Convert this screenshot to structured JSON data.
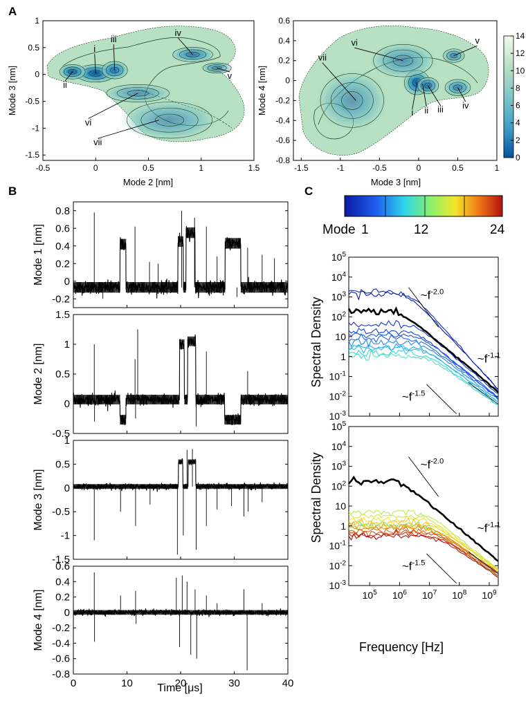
{
  "panel_letters": [
    "A",
    "B",
    "C"
  ],
  "colors": {
    "landscape_low": "#08519c",
    "landscape_mid": "#7fc5c5",
    "landscape_high": "#f2faee",
    "contour": "#1b3a1b",
    "trace": "#000000",
    "mean_spectrum": "#000000"
  },
  "chart_data": [
    {
      "id": "A-left",
      "type": "heatmap",
      "xlabel": "Mode 2 [nm]",
      "ylabel": "Mode 3 [nm]",
      "xlim": [
        -0.5,
        1.5
      ],
      "ylim": [
        -1.6,
        1.0
      ],
      "xticks": [
        -0.5,
        0,
        0.5,
        1,
        1.5
      ],
      "xtick_labels": [
        "-0.5",
        "0",
        "0.5",
        "1",
        "1.5"
      ],
      "yticks": [
        1,
        0.5,
        0,
        -0.5,
        -1,
        -1.5
      ],
      "ytick_labels": [
        "1",
        "0.5",
        "0",
        "-0.5",
        "-1",
        "-1.5"
      ],
      "annotations": [
        {
          "label": "i",
          "x": 0.0,
          "y": 0.02,
          "tx": -0.01,
          "ty": 0.42
        },
        {
          "label": "ii",
          "x": -0.22,
          "y": 0.05,
          "tx": -0.29,
          "ty": -0.25
        },
        {
          "label": "iii",
          "x": 0.18,
          "y": 0.08,
          "tx": 0.17,
          "ty": 0.6
        },
        {
          "label": "iv",
          "x": 0.92,
          "y": 0.37,
          "tx": 0.78,
          "ty": 0.72
        },
        {
          "label": "v",
          "x": 1.15,
          "y": 0.12,
          "tx": 1.27,
          "ty": -0.08
        },
        {
          "label": "vi",
          "x": 0.4,
          "y": -0.35,
          "tx": -0.07,
          "ty": -0.95
        },
        {
          "label": "vii",
          "x": 0.6,
          "y": -0.85,
          "tx": 0.02,
          "ty": -1.32
        }
      ],
      "blobs": [
        {
          "x": 0.0,
          "y": 0.02,
          "sx": 0.14,
          "sy": 0.12,
          "level": 14
        },
        {
          "x": -0.22,
          "y": 0.05,
          "sx": 0.09,
          "sy": 0.1,
          "level": 12
        },
        {
          "x": 0.18,
          "y": 0.08,
          "sx": 0.09,
          "sy": 0.12,
          "level": 9
        },
        {
          "x": 0.92,
          "y": 0.37,
          "sx": 0.14,
          "sy": 0.1,
          "level": 8
        },
        {
          "x": 1.15,
          "y": 0.12,
          "sx": 0.1,
          "sy": 0.07,
          "level": 6
        },
        {
          "x": 0.4,
          "y": -0.35,
          "sx": 0.22,
          "sy": 0.12,
          "level": 4
        },
        {
          "x": 0.7,
          "y": -0.85,
          "sx": 0.3,
          "sy": 0.25,
          "level": 3
        }
      ]
    },
    {
      "id": "A-right",
      "type": "heatmap",
      "xlabel": "Mode 3 [nm]",
      "ylabel": "Mode 4 [nm]",
      "xlim": [
        -1.6,
        1.0
      ],
      "ylim": [
        -0.8,
        0.6
      ],
      "xticks": [
        -1.5,
        -1,
        -0.5,
        0,
        0.5,
        1
      ],
      "xtick_labels": [
        "-1.5",
        "-1",
        "-0.5",
        "0",
        "0.5",
        "1"
      ],
      "yticks": [
        0.6,
        0.4,
        0.2,
        0,
        -0.2,
        -0.4,
        -0.6,
        -0.8
      ],
      "ytick_labels": [
        "0.6",
        "0.4",
        "0.2",
        "0",
        "-0.2",
        "-0.4",
        "-0.6",
        "-0.8"
      ],
      "colorbar": {
        "min": 0,
        "max": 14,
        "ticks": [
          0,
          2,
          4,
          6,
          8,
          10,
          12,
          14
        ]
      },
      "annotations": [
        {
          "label": "i",
          "x": -0.02,
          "y": -0.02,
          "tx": -0.08,
          "ty": -0.35
        },
        {
          "label": "ii",
          "x": 0.05,
          "y": -0.03,
          "tx": 0.1,
          "ty": -0.33
        },
        {
          "label": "iii",
          "x": 0.12,
          "y": -0.05,
          "tx": 0.28,
          "ty": -0.32
        },
        {
          "label": "iv",
          "x": 0.5,
          "y": -0.07,
          "tx": 0.6,
          "ty": -0.28
        },
        {
          "label": "v",
          "x": 0.45,
          "y": 0.25,
          "tx": 0.75,
          "ty": 0.37
        },
        {
          "label": "vi",
          "x": -0.2,
          "y": 0.2,
          "tx": -0.82,
          "ty": 0.35
        },
        {
          "label": "vii",
          "x": -0.8,
          "y": -0.2,
          "tx": -1.23,
          "ty": 0.2
        }
      ],
      "blobs": [
        {
          "x": -0.02,
          "y": -0.02,
          "sx": 0.12,
          "sy": 0.09,
          "level": 14
        },
        {
          "x": 0.12,
          "y": -0.05,
          "sx": 0.1,
          "sy": 0.06,
          "level": 9
        },
        {
          "x": 0.5,
          "y": -0.07,
          "sx": 0.12,
          "sy": 0.06,
          "level": 7
        },
        {
          "x": 0.45,
          "y": 0.25,
          "sx": 0.1,
          "sy": 0.05,
          "level": 6
        },
        {
          "x": -0.2,
          "y": 0.2,
          "sx": 0.28,
          "sy": 0.12,
          "level": 4
        },
        {
          "x": -0.85,
          "y": -0.2,
          "sx": 0.3,
          "sy": 0.2,
          "level": 3
        }
      ]
    },
    {
      "id": "B1",
      "type": "line",
      "ylabel": "Mode 1 [nm]",
      "xlim": [
        0,
        40
      ],
      "ylim": [
        -0.3,
        0.9
      ],
      "yticks": [
        0.8,
        0.6,
        0.4,
        0.2,
        0,
        -0.2
      ],
      "ytick_labels": [
        "0.8",
        "0.6",
        "0.4",
        "0.2",
        "0",
        "-0.2"
      ],
      "baseline": -0.07,
      "noise": 0.06,
      "segments": [
        {
          "x0": 8.7,
          "x1": 9.8,
          "level": 0.42
        },
        {
          "x0": 19.5,
          "x1": 20.5,
          "level": 0.45
        },
        {
          "x0": 21.0,
          "x1": 22.7,
          "level": 0.55
        },
        {
          "x0": 28.3,
          "x1": 31.2,
          "level": 0.43
        }
      ],
      "spikes": [
        [
          3.9,
          0.78
        ],
        [
          11.5,
          0.62
        ],
        [
          14.2,
          0.22
        ],
        [
          15.8,
          0.2
        ],
        [
          20.2,
          0.8
        ],
        [
          22.6,
          0.72
        ],
        [
          24.8,
          0.62
        ],
        [
          26.8,
          0.28
        ],
        [
          32.5,
          0.38
        ],
        [
          35.2,
          0.3
        ],
        [
          37.5,
          0.26
        ],
        [
          -0.1,
          0
        ],
        [
          5.5,
          -0.2
        ],
        [
          30.5,
          -0.18
        ]
      ]
    },
    {
      "id": "B2",
      "type": "line",
      "ylabel": "Mode 2 [nm]",
      "xlim": [
        0,
        40
      ],
      "ylim": [
        -0.5,
        1.5
      ],
      "yticks": [
        1.5,
        1,
        0.5,
        0,
        -0.5
      ],
      "ytick_labels": [
        "1.5",
        "1",
        "0.5",
        "0",
        "-0.5"
      ],
      "baseline": 0.07,
      "noise": 0.08,
      "segments": [
        {
          "x0": 8.7,
          "x1": 9.8,
          "level": -0.27
        },
        {
          "x0": 19.8,
          "x1": 20.7,
          "level": 1.0
        },
        {
          "x0": 21.3,
          "x1": 22.8,
          "level": 1.05
        },
        {
          "x0": 28.2,
          "x1": 31.2,
          "level": -0.27
        }
      ],
      "spikes": [
        [
          3.9,
          1.0
        ],
        [
          11.5,
          0.75
        ],
        [
          12.0,
          1.25
        ],
        [
          24.8,
          0.88
        ],
        [
          32.5,
          0.55
        ],
        [
          3.95,
          -0.3
        ],
        [
          11.6,
          -0.25
        ],
        [
          22.9,
          -0.38
        ]
      ]
    },
    {
      "id": "B3",
      "type": "line",
      "ylabel": "Mode 3 [nm]",
      "xlim": [
        0,
        40
      ],
      "ylim": [
        -1.5,
        1.0
      ],
      "yticks": [
        1,
        0.5,
        0,
        -0.5,
        -1,
        -1.5
      ],
      "ytick_labels": [
        "1",
        "0.5",
        "0",
        "-0.5",
        "-1",
        "-1.5"
      ],
      "baseline": 0.03,
      "noise": 0.05,
      "segments": [
        {
          "x0": 19.6,
          "x1": 20.4,
          "level": 0.55
        },
        {
          "x0": 21.4,
          "x1": 22.8,
          "level": 0.55
        }
      ],
      "spikes": [
        [
          3.9,
          -1.1
        ],
        [
          8.8,
          -0.5
        ],
        [
          11.6,
          -0.8
        ],
        [
          14.3,
          -0.35
        ],
        [
          19.4,
          -1.4
        ],
        [
          20.5,
          -1.0
        ],
        [
          22.9,
          -1.3
        ],
        [
          24.8,
          -0.8
        ],
        [
          26.8,
          -0.45
        ],
        [
          29.5,
          -0.38
        ],
        [
          31.8,
          -0.6
        ],
        [
          32.6,
          -0.5
        ],
        [
          35.2,
          -0.3
        ],
        [
          21.2,
          0.8
        ],
        [
          22.2,
          0.82
        ]
      ]
    },
    {
      "id": "B4",
      "type": "line",
      "ylabel": "Mode 4 [nm]",
      "xlabel": "Time [μs]",
      "xlim": [
        0,
        40
      ],
      "ylim": [
        -0.8,
        0.6
      ],
      "xticks": [
        0,
        10,
        20,
        30,
        40
      ],
      "xtick_labels": [
        "0",
        "10",
        "20",
        "30",
        "40"
      ],
      "yticks": [
        0.6,
        0.4,
        0.2,
        0,
        -0.2,
        -0.4,
        -0.6,
        -0.8
      ],
      "ytick_labels": [
        "0.6",
        "0.4",
        "0.2",
        "0",
        "-0.2",
        "-0.4",
        "-0.6",
        "-0.8"
      ],
      "baseline": 0.0,
      "noise": 0.03,
      "segments": [],
      "spikes": [
        [
          3.9,
          0.52
        ],
        [
          3.95,
          -0.38
        ],
        [
          8.8,
          0.22
        ],
        [
          11.6,
          0.28
        ],
        [
          11.7,
          -0.15
        ],
        [
          19.2,
          0.45
        ],
        [
          19.8,
          -0.45
        ],
        [
          20.3,
          0.48
        ],
        [
          21.2,
          0.4
        ],
        [
          21.9,
          -0.55
        ],
        [
          22.7,
          0.3
        ],
        [
          23.0,
          -0.6
        ],
        [
          24.8,
          0.22
        ],
        [
          26.8,
          0.12
        ],
        [
          31.8,
          0.3
        ],
        [
          32.4,
          -0.75
        ],
        [
          35.2,
          0.12
        ]
      ]
    },
    {
      "id": "C-colorbar",
      "type": "table",
      "title": "Mode",
      "labels": [
        "1",
        "12",
        "24"
      ],
      "min": 1,
      "max": 24
    },
    {
      "id": "C-top",
      "type": "line",
      "scale": "log-log",
      "ylabel": "Spectral Density",
      "xlim": [
        20000,
        2000000000
      ],
      "ylim": [
        0.001,
        100000
      ],
      "yticks": [
        100000,
        10000,
        1000,
        100,
        10,
        1,
        0.1,
        0.01,
        0.001
      ],
      "ytick_labels": [
        "10^5",
        "10^4",
        "10^3",
        "10^2",
        "10",
        "1",
        "10^-1",
        "10^-2",
        "10^-3"
      ],
      "power_laws": [
        {
          "label": "~f",
          "exponent": "-2.0",
          "x0": 2000000,
          "y0": 3000,
          "x1": 20000000,
          "y1": 30,
          "lx": 5000000,
          "ly": 800
        },
        {
          "label": "~f",
          "exponent": "-1.1",
          "x0": 200000000,
          "y0": 0.05,
          "x1": 2000000000,
          "y1": 0.004,
          "lx": 400000000,
          "ly": 0.5
        },
        {
          "label": "~f",
          "exponent": "-1.5",
          "x0": 8000000,
          "y0": 0.04,
          "x1": 80000000,
          "y1": 0.0013,
          "lx": 1200000,
          "ly": 0.006
        }
      ],
      "series": [
        {
          "name": "",
          "mode": 1,
          "plateau": 1500,
          "knee": 2000000,
          "slope": -1.6
        },
        {
          "name": "",
          "mode": 2,
          "plateau": 1800,
          "knee": 2500000,
          "slope": -1.7
        },
        {
          "name": "",
          "mode": 3,
          "plateau": 40,
          "knee": 4000000,
          "slope": -1.3
        },
        {
          "name": "",
          "mode": 4,
          "plateau": 18,
          "knee": 4000000,
          "slope": -1.25
        },
        {
          "name": "",
          "mode": 5,
          "plateau": 12,
          "knee": 5000000,
          "slope": -1.2
        },
        {
          "name": "",
          "mode": 6,
          "plateau": 8,
          "knee": 5000000,
          "slope": -1.15
        },
        {
          "name": "",
          "mode": 7,
          "plateau": 5,
          "knee": 6000000,
          "slope": -1.15
        },
        {
          "name": "",
          "mode": 8,
          "plateau": 3,
          "knee": 6000000,
          "slope": -1.1
        },
        {
          "name": "",
          "mode": 9,
          "plateau": 2.5,
          "knee": 7000000,
          "slope": -1.1
        },
        {
          "name": "",
          "mode": 10,
          "plateau": 1.5,
          "knee": 8000000,
          "slope": -1.1
        },
        {
          "name": "",
          "mode": 11,
          "plateau": 1.0,
          "knee": 9000000,
          "slope": -1.05
        }
      ],
      "mean": {
        "plateau": 180,
        "knee": 1200000,
        "slope": -1.25
      }
    },
    {
      "id": "C-bottom",
      "type": "line",
      "scale": "log-log",
      "ylabel": "Spectral Density",
      "xlabel": "Frequency [Hz]",
      "xlim": [
        20000,
        2000000000
      ],
      "ylim": [
        0.001,
        100000
      ],
      "xticks": [
        100000,
        1000000,
        10000000,
        100000000,
        1000000000
      ],
      "xtick_labels": [
        "10^5",
        "10^6",
        "10^7",
        "10^8",
        "10^9"
      ],
      "yticks": [
        100000,
        10000,
        1000,
        100,
        10,
        1,
        0.1,
        0.01,
        0.001
      ],
      "ytick_labels": [
        "10^5",
        "10^4",
        "10^3",
        "10^2",
        "10",
        "1",
        "10^-1",
        "10^-2",
        "10^-3"
      ],
      "power_laws": [
        {
          "label": "~f",
          "exponent": "-2.0",
          "x0": 2000000,
          "y0": 3000,
          "x1": 20000000,
          "y1": 30,
          "lx": 5000000,
          "ly": 800
        },
        {
          "label": "~f",
          "exponent": "-1.1",
          "x0": 200000000,
          "y0": 0.05,
          "x1": 2000000000,
          "y1": 0.004,
          "lx": 400000000,
          "ly": 0.5
        },
        {
          "label": "~f",
          "exponent": "-1.5",
          "x0": 8000000,
          "y0": 0.04,
          "x1": 80000000,
          "y1": 0.0013,
          "lx": 1200000,
          "ly": 0.006
        }
      ],
      "series": [
        {
          "name": "",
          "mode": 13,
          "plateau": 1.2,
          "knee": 10000000,
          "slope": -1.1
        },
        {
          "name": "",
          "mode": 14,
          "plateau": 0.9,
          "knee": 10000000,
          "slope": -1.1
        },
        {
          "name": "",
          "mode": 15,
          "plateau": 5,
          "knee": 8000000,
          "slope": -1.2
        },
        {
          "name": "",
          "mode": 16,
          "plateau": 3,
          "knee": 9000000,
          "slope": -1.15
        },
        {
          "name": "",
          "mode": 17,
          "plateau": 2,
          "knee": 10000000,
          "slope": -1.1
        },
        {
          "name": "",
          "mode": 18,
          "plateau": 1.5,
          "knee": 12000000,
          "slope": -1.1
        },
        {
          "name": "",
          "mode": 19,
          "plateau": 1.0,
          "knee": 12000000,
          "slope": -1.05
        },
        {
          "name": "",
          "mode": 20,
          "plateau": 0.8,
          "knee": 14000000,
          "slope": -1.05
        },
        {
          "name": "",
          "mode": 21,
          "plateau": 0.6,
          "knee": 15000000,
          "slope": -1.0
        },
        {
          "name": "",
          "mode": 22,
          "plateau": 0.5,
          "knee": 15000000,
          "slope": -1.0
        },
        {
          "name": "",
          "mode": 23,
          "plateau": 0.4,
          "knee": 16000000,
          "slope": -1.0
        },
        {
          "name": "",
          "mode": 24,
          "plateau": 0.3,
          "knee": 18000000,
          "slope": -1.0
        }
      ],
      "mean": {
        "plateau": 180,
        "knee": 1200000,
        "slope": -1.25
      }
    }
  ]
}
